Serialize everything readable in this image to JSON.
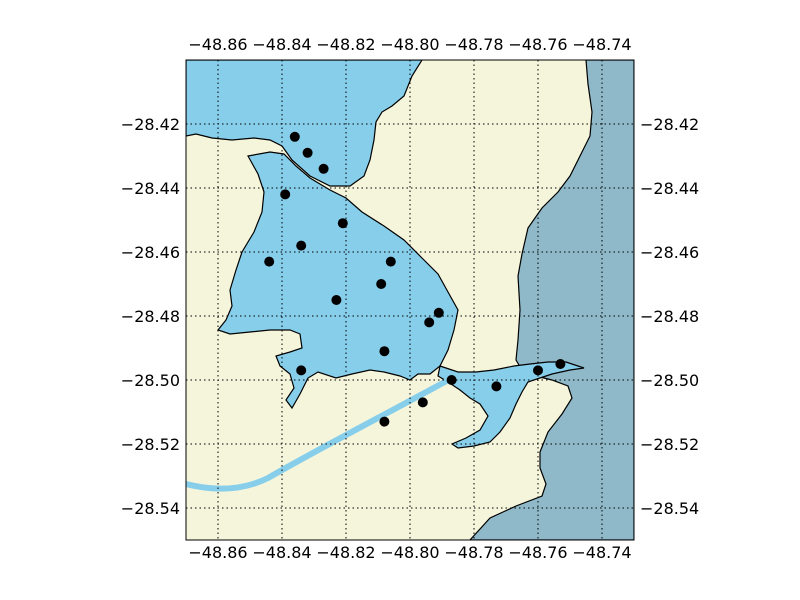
{
  "map": {
    "colors": {
      "land": "#f5f5dc",
      "water": "#87ceeb",
      "ocean": "#8fb9c9",
      "river": "#87ceeb",
      "coastline": "#000000",
      "station": "#000000"
    },
    "lon_ticks": [
      "−48.86",
      "−48.84",
      "−48.82",
      "−48.80",
      "−48.78",
      "−48.76",
      "−48.74"
    ],
    "lat_ticks": [
      "−28.42",
      "−28.44",
      "−28.46",
      "−28.48",
      "−28.50",
      "−28.52",
      "−28.54"
    ],
    "lon_range": [
      -48.87,
      -48.73
    ],
    "lat_range": [
      -28.55,
      -28.4
    ],
    "grid": true,
    "stations": [
      {
        "lon": -48.836,
        "lat": -28.424
      },
      {
        "lon": -48.832,
        "lat": -28.429
      },
      {
        "lon": -48.827,
        "lat": -28.434
      },
      {
        "lon": -48.839,
        "lat": -28.442
      },
      {
        "lon": -48.821,
        "lat": -28.451
      },
      {
        "lon": -48.834,
        "lat": -28.458
      },
      {
        "lon": -48.844,
        "lat": -28.463
      },
      {
        "lon": -48.806,
        "lat": -28.463
      },
      {
        "lon": -48.809,
        "lat": -28.47
      },
      {
        "lon": -48.823,
        "lat": -28.475
      },
      {
        "lon": -48.791,
        "lat": -28.479
      },
      {
        "lon": -48.794,
        "lat": -28.482
      },
      {
        "lon": -48.808,
        "lat": -28.491
      },
      {
        "lon": -48.834,
        "lat": -28.497
      },
      {
        "lon": -48.787,
        "lat": -28.5
      },
      {
        "lon": -48.773,
        "lat": -28.502
      },
      {
        "lon": -48.76,
        "lat": -28.497
      },
      {
        "lon": -48.753,
        "lat": -28.495
      },
      {
        "lon": -48.796,
        "lat": -28.507
      },
      {
        "lon": -48.808,
        "lat": -28.513
      }
    ]
  }
}
